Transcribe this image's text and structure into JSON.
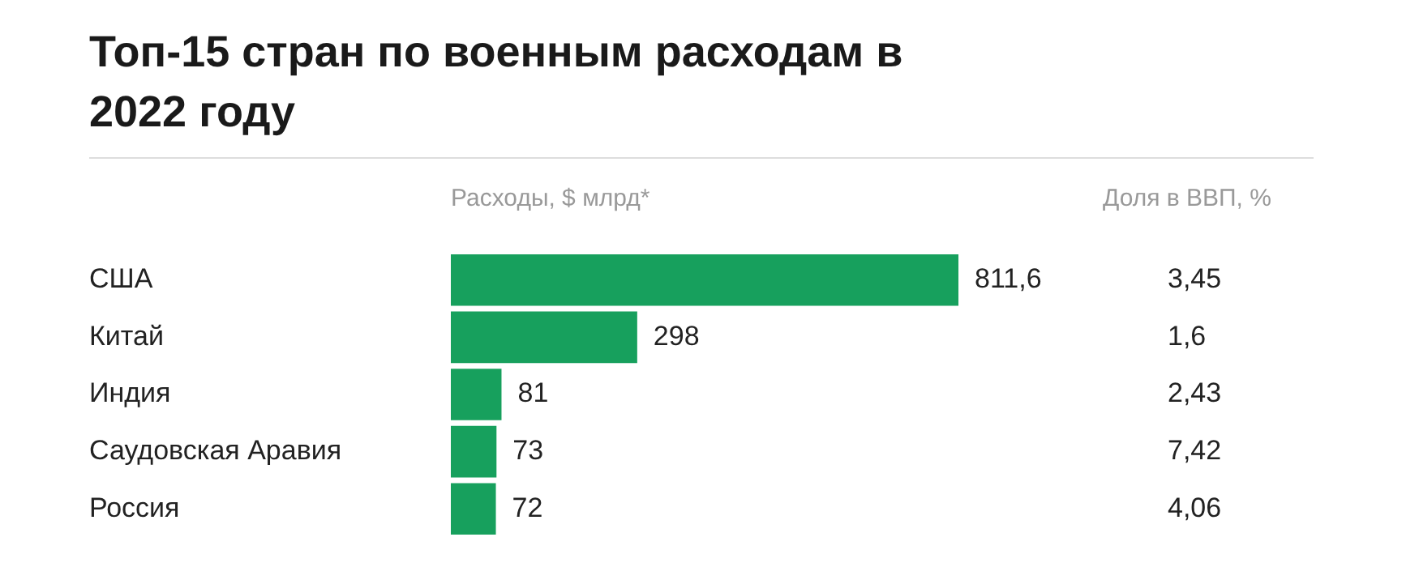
{
  "chart_data": {
    "type": "bar",
    "orientation": "horizontal",
    "title": "Топ-15 стран по военным расходам в 2022 году",
    "xlabel": "Расходы, $ млрд*",
    "categories": [
      "США",
      "Китай",
      "Индия",
      "Саудовская Аравия",
      "Россия"
    ],
    "values": [
      811.6,
      298,
      81,
      73,
      72
    ],
    "color": "#17a05d",
    "value_labels": [
      "811,6",
      "298",
      "81",
      "73",
      "72"
    ],
    "annotations": [
      "Доля в ВВП, %",
      "3,45",
      "1,6",
      "2,43",
      "7,42",
      "4,06"
    ],
    "grid": false,
    "legend": false
  }
}
